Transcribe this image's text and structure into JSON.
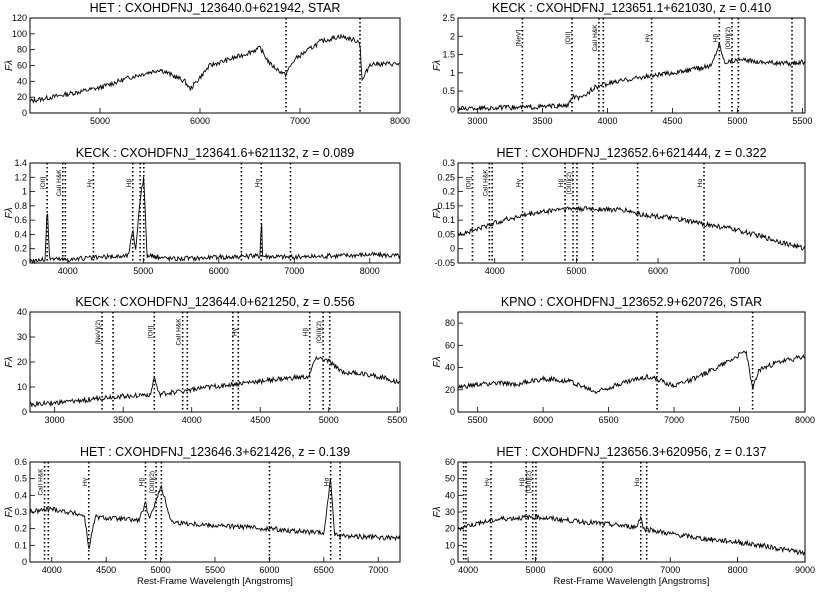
{
  "figure": {
    "xlabel": "Rest-Frame Wavelength [Angstroms]",
    "ylabel": "Fλ"
  },
  "chart_data": [
    {
      "type": "line",
      "title": "HET : CXOHDFNJ_123640.0+621942, STAR",
      "xlim": [
        4300,
        8000
      ],
      "ylim": [
        0,
        120
      ],
      "xticks": [
        5000,
        6000,
        7000,
        8000
      ],
      "yticks": [
        0,
        20,
        40,
        60,
        80,
        100,
        120
      ],
      "xlabel": "",
      "ylabel": "Fλ",
      "x": [
        4300,
        4600,
        5000,
        5300,
        5600,
        5850,
        5900,
        6100,
        6400,
        6600,
        6700,
        6850,
        6950,
        7200,
        7400,
        7600,
        7620,
        7700,
        8000
      ],
      "y": [
        15,
        22,
        32,
        45,
        55,
        40,
        30,
        60,
        72,
        82,
        62,
        48,
        68,
        90,
        97,
        90,
        40,
        62,
        62
      ],
      "lines": [
        {
          "x": 6860,
          "label": ""
        },
        {
          "x": 7600,
          "label": ""
        }
      ]
    },
    {
      "type": "line",
      "title": "KECK : CXOHDFNJ_123651.1+621030, z = 0.410",
      "xlim": [
        2850,
        5520
      ],
      "ylim": [
        -0.1,
        2.5
      ],
      "xticks": [
        3000,
        3500,
        4000,
        4500,
        5000,
        5500
      ],
      "yticks": [
        0.0,
        0.5,
        1.0,
        1.5,
        2.0,
        2.5
      ],
      "xlabel": "",
      "ylabel": "Fλ",
      "x": [
        2850,
        3300,
        3700,
        3730,
        3800,
        3900,
        4000,
        4200,
        4400,
        4600,
        4800,
        4860,
        4900,
        5000,
        5200,
        5400,
        5520
      ],
      "y": [
        0.02,
        0.05,
        0.1,
        0.35,
        0.3,
        0.6,
        0.7,
        0.85,
        0.95,
        1.05,
        1.2,
        1.8,
        1.3,
        1.35,
        1.3,
        1.25,
        1.3
      ],
      "lines": [
        {
          "x": 3346,
          "label": "[NeV]"
        },
        {
          "x": 3727,
          "label": "[OII]"
        },
        {
          "x": 3934,
          "label": "CaII H&K"
        },
        {
          "x": 3968,
          "label": ""
        },
        {
          "x": 4340,
          "label": "Hγ"
        },
        {
          "x": 4861,
          "label": "Hβ"
        },
        {
          "x": 4959,
          "label": "[OIII](2)"
        },
        {
          "x": 5007,
          "label": ""
        },
        {
          "x": 5420,
          "label": ""
        }
      ]
    },
    {
      "type": "line",
      "title": "KECK : CXOHDFNJ_123641.6+621132, z = 0.089",
      "xlim": [
        3500,
        8400
      ],
      "ylim": [
        0,
        1.4
      ],
      "xticks": [
        4000,
        5000,
        6000,
        7000,
        8000
      ],
      "yticks": [
        0.0,
        0.2,
        0.4,
        0.6,
        0.8,
        1.0,
        1.2,
        1.4
      ],
      "xlabel": "",
      "ylabel": "Fλ",
      "x": [
        3500,
        3700,
        3727,
        3760,
        4000,
        4800,
        4861,
        4900,
        4959,
        5007,
        5050,
        5400,
        6000,
        6550,
        6563,
        6580,
        7000,
        8000,
        8400
      ],
      "y": [
        0.03,
        0.05,
        0.8,
        0.06,
        0.05,
        0.1,
        0.45,
        0.2,
        0.9,
        1.2,
        0.1,
        0.06,
        0.08,
        0.1,
        0.75,
        0.1,
        0.08,
        0.12,
        0.1
      ],
      "lines": [
        {
          "x": 3727,
          "label": "[OII]"
        },
        {
          "x": 3934,
          "label": "CaII H&K"
        },
        {
          "x": 3968,
          "label": ""
        },
        {
          "x": 4340,
          "label": "Hγ"
        },
        {
          "x": 4861,
          "label": "Hβ"
        },
        {
          "x": 4959,
          "label": ""
        },
        {
          "x": 5007,
          "label": ""
        },
        {
          "x": 6300,
          "label": ""
        },
        {
          "x": 6563,
          "label": "Hα"
        },
        {
          "x": 6950,
          "label": ""
        }
      ]
    },
    {
      "type": "line",
      "title": "HET : CXOHDFNJ_123652.6+621444, z = 0.322",
      "xlim": [
        3550,
        7800
      ],
      "ylim": [
        -0.05,
        0.3
      ],
      "xticks": [
        4000,
        5000,
        6000,
        7000
      ],
      "yticks": [
        -0.05,
        0.0,
        0.05,
        0.1,
        0.15,
        0.2,
        0.25,
        0.3
      ],
      "xlabel": "",
      "ylabel": "Fλ",
      "x": [
        3550,
        3800,
        4100,
        4400,
        4800,
        5200,
        5600,
        5800,
        6100,
        6500,
        6900,
        7300,
        7800
      ],
      "y": [
        0.05,
        0.07,
        0.1,
        0.12,
        0.14,
        0.14,
        0.135,
        0.12,
        0.11,
        0.09,
        0.07,
        0.04,
        0.0
      ],
      "lines": [
        {
          "x": 3727,
          "label": "[OII]"
        },
        {
          "x": 3934,
          "label": "CaII H&K"
        },
        {
          "x": 3968,
          "label": ""
        },
        {
          "x": 4340,
          "label": "Hγ"
        },
        {
          "x": 4861,
          "label": "Hβ"
        },
        {
          "x": 4959,
          "label": "[OIII](2)"
        },
        {
          "x": 5007,
          "label": ""
        },
        {
          "x": 5200,
          "label": ""
        },
        {
          "x": 5750,
          "label": ""
        },
        {
          "x": 6563,
          "label": "Hα"
        }
      ]
    },
    {
      "type": "line",
      "title": "KECK : CXOHDFNJ_123644.0+621250, z = 0.556",
      "xlim": [
        2820,
        5520
      ],
      "ylim": [
        0,
        40
      ],
      "xticks": [
        3000,
        3500,
        4000,
        4500,
        5000,
        5500
      ],
      "yticks": [
        0,
        10,
        20,
        30,
        40
      ],
      "xlabel": "",
      "ylabel": "Fλ",
      "x": [
        2820,
        3100,
        3400,
        3700,
        3727,
        3760,
        4000,
        4300,
        4600,
        4860,
        4900,
        5007,
        5100,
        5300,
        5520
      ],
      "y": [
        3,
        4,
        6,
        7,
        14,
        7,
        9,
        11,
        13,
        14,
        22,
        20,
        16,
        15,
        12
      ],
      "lines": [
        {
          "x": 3346,
          "label": "[NeV](2)"
        },
        {
          "x": 3426,
          "label": ""
        },
        {
          "x": 3727,
          "label": "[OII]"
        },
        {
          "x": 3934,
          "label": "CaII H&K"
        },
        {
          "x": 3968,
          "label": ""
        },
        {
          "x": 4300,
          "label": ""
        },
        {
          "x": 4340,
          "label": "Hγ"
        },
        {
          "x": 4861,
          "label": "Hβ"
        },
        {
          "x": 4959,
          "label": "[OIII](2)"
        },
        {
          "x": 5007,
          "label": ""
        }
      ]
    },
    {
      "type": "line",
      "title": "KPNO : CXOHDFNJ_123652.9+620726, STAR",
      "xlim": [
        5350,
        8000
      ],
      "ylim": [
        0,
        90
      ],
      "xticks": [
        5500,
        6000,
        6500,
        7000,
        7500,
        8000
      ],
      "yticks": [
        0,
        20,
        40,
        60,
        80
      ],
      "xlabel": "",
      "ylabel": "Fλ",
      "x": [
        5350,
        5600,
        5800,
        6000,
        6200,
        6400,
        6600,
        6800,
        7000,
        7200,
        7400,
        7550,
        7600,
        7650,
        7800,
        8000
      ],
      "y": [
        22,
        26,
        25,
        30,
        28,
        18,
        26,
        32,
        24,
        32,
        45,
        55,
        20,
        38,
        45,
        50
      ],
      "lines": [
        {
          "x": 6870,
          "label": ""
        },
        {
          "x": 7600,
          "label": ""
        }
      ]
    },
    {
      "type": "line",
      "title": "HET : CXOHDFNJ_123646.3+621426, z = 0.139",
      "xlim": [
        3800,
        7200
      ],
      "ylim": [
        0,
        0.6
      ],
      "xticks": [
        4000,
        4500,
        5000,
        5500,
        6000,
        6500,
        7000
      ],
      "yticks": [
        0.0,
        0.1,
        0.2,
        0.3,
        0.4,
        0.5,
        0.6
      ],
      "xlabel": "Rest-Frame Wavelength [Angstroms]",
      "ylabel": "Fλ",
      "x": [
        3800,
        4000,
        4300,
        4340,
        4400,
        4800,
        4861,
        4900,
        4959,
        5007,
        5100,
        5500,
        6000,
        6500,
        6563,
        6600,
        7200
      ],
      "y": [
        0.3,
        0.32,
        0.28,
        0.08,
        0.27,
        0.25,
        0.35,
        0.25,
        0.38,
        0.45,
        0.24,
        0.22,
        0.2,
        0.17,
        0.5,
        0.16,
        0.14
      ],
      "lines": [
        {
          "x": 3934,
          "label": "CaII H&K"
        },
        {
          "x": 3968,
          "label": ""
        },
        {
          "x": 4340,
          "label": "Hγ"
        },
        {
          "x": 4861,
          "label": "Hβ"
        },
        {
          "x": 4959,
          "label": "[OIII](2)"
        },
        {
          "x": 5007,
          "label": ""
        },
        {
          "x": 6000,
          "label": ""
        },
        {
          "x": 6563,
          "label": "Hα"
        },
        {
          "x": 6650,
          "label": ""
        }
      ]
    },
    {
      "type": "line",
      "title": "HET : CXOHDFNJ_123656.3+620956, z = 0.137",
      "xlim": [
        3850,
        9000
      ],
      "ylim": [
        0,
        60
      ],
      "xticks": [
        4000,
        5000,
        6000,
        7000,
        8000,
        9000
      ],
      "yticks": [
        0,
        10,
        20,
        30,
        40,
        50,
        60
      ],
      "xlabel": "Rest-Frame Wavelength [Angstroms]",
      "ylabel": "Fλ",
      "x": [
        3850,
        4000,
        4500,
        5000,
        5500,
        6000,
        6500,
        6563,
        6600,
        7000,
        7500,
        8000,
        8500,
        9000
      ],
      "y": [
        20,
        22,
        26,
        27,
        25,
        23,
        21,
        28,
        20,
        17,
        14,
        12,
        9,
        5
      ],
      "lines": [
        {
          "x": 3934,
          "label": ""
        },
        {
          "x": 3968,
          "label": ""
        },
        {
          "x": 4340,
          "label": "Hγ"
        },
        {
          "x": 4861,
          "label": "Hβ"
        },
        {
          "x": 4959,
          "label": "[OIII](2)"
        },
        {
          "x": 5007,
          "label": ""
        },
        {
          "x": 6000,
          "label": ""
        },
        {
          "x": 6563,
          "label": "Hα"
        },
        {
          "x": 6650,
          "label": ""
        }
      ]
    }
  ]
}
